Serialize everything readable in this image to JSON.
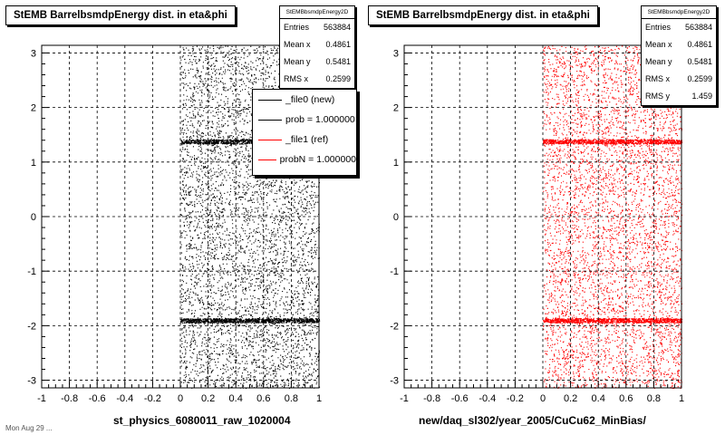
{
  "chart_data": [
    {
      "type": "scatter",
      "title": "StEMB BarrelbsmdpEnergy dist. in eta&phi",
      "xlabel": "st_physics_6080011_raw_1020004",
      "ylabel": "",
      "xlim": [
        -1,
        1
      ],
      "ylim": [
        -3.14,
        3.14
      ],
      "x_ticks": [
        -1,
        -0.8,
        -0.6,
        -0.4,
        -0.2,
        0,
        0.2,
        0.4,
        0.6,
        0.8,
        1
      ],
      "x_tick_labels": [
        "-1",
        "-0.8",
        "-0.6",
        "-0.4",
        "-0.2",
        "0",
        "0.2",
        "0.4",
        "0.6",
        "0.8",
        "1"
      ],
      "y_ticks": [
        -3,
        -2,
        -1,
        0,
        1,
        2,
        3
      ],
      "y_tick_labels": [
        "-3",
        "-2",
        "-1",
        "0",
        "1",
        "2",
        "3"
      ],
      "grid": true,
      "point_color": "#000000",
      "data_region": {
        "x": [
          0,
          1
        ],
        "y": [
          -3.14,
          3.14
        ]
      },
      "dense_bands_y": [
        1.38,
        -1.9
      ],
      "stats": {
        "name": "StEMBbsmdpEnergy2D",
        "rows": [
          {
            "label": "Entries",
            "value": "563884"
          },
          {
            "label": "Mean x",
            "value": "0.4861"
          },
          {
            "label": "Mean y",
            "value": "0.5481"
          },
          {
            "label": "RMS x",
            "value": "0.2599"
          }
        ]
      },
      "legend": [
        {
          "label": "_file0 (new)",
          "color": "#000000"
        },
        {
          "label": "prob = 1.000000",
          "color": "#000000"
        },
        {
          "label": "_file1 (ref)",
          "color": "#ff0000"
        },
        {
          "label": "probN = 1.000000",
          "color": "#ff0000"
        }
      ],
      "legend_position": "top-right"
    },
    {
      "type": "scatter",
      "title": "StEMB BarrelbsmdpEnergy dist. in eta&phi",
      "xlabel": "new/daq_sl302/year_2005/CuCu62_MinBias/",
      "ylabel": "",
      "xlim": [
        -1,
        1
      ],
      "ylim": [
        -3.14,
        3.14
      ],
      "x_ticks": [
        -1,
        -0.8,
        -0.6,
        -0.4,
        -0.2,
        0,
        0.2,
        0.4,
        0.6,
        0.8,
        1
      ],
      "x_tick_labels": [
        "-1",
        "-0.8",
        "-0.6",
        "-0.4",
        "-0.2",
        "0",
        "0.2",
        "0.4",
        "0.6",
        "0.8",
        "1"
      ],
      "y_ticks": [
        -3,
        -2,
        -1,
        0,
        1,
        2,
        3
      ],
      "y_tick_labels": [
        "-3",
        "-2",
        "-1",
        "0",
        "1",
        "2",
        "3"
      ],
      "grid": true,
      "point_color": "#ff0000",
      "data_region": {
        "x": [
          0,
          1
        ],
        "y": [
          -3.14,
          3.14
        ]
      },
      "dense_bands_y": [
        1.38,
        -1.9
      ],
      "stats": {
        "name": "StEMBbsmdpEnergy2D",
        "rows": [
          {
            "label": "Entries",
            "value": "563884"
          },
          {
            "label": "Mean x",
            "value": "0.4861"
          },
          {
            "label": "Mean y",
            "value": "0.5481"
          },
          {
            "label": "RMS x",
            "value": "0.2599"
          },
          {
            "label": "RMS y",
            "value": "1.459"
          }
        ]
      }
    }
  ],
  "footer": "Mon Aug 29 ..."
}
